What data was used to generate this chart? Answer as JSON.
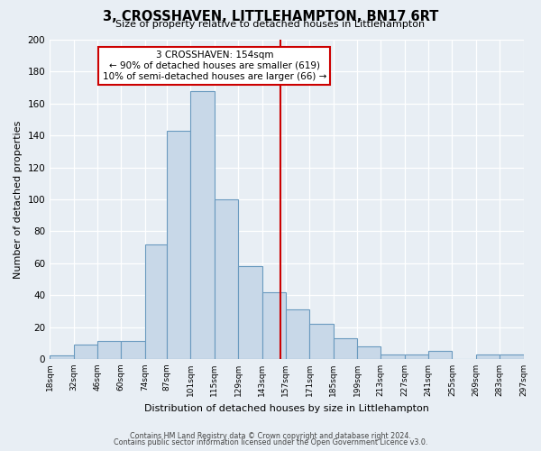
{
  "title": "3, CROSSHAVEN, LITTLEHAMPTON, BN17 6RT",
  "subtitle": "Size of property relative to detached houses in Littlehampton",
  "xlabel": "Distribution of detached houses by size in Littlehampton",
  "ylabel": "Number of detached properties",
  "bar_edges": [
    18,
    32,
    46,
    60,
    74,
    87,
    101,
    115,
    129,
    143,
    157,
    171,
    185,
    199,
    213,
    227,
    241,
    255,
    269,
    283,
    297
  ],
  "bar_heights": [
    2,
    9,
    11,
    11,
    72,
    143,
    168,
    100,
    58,
    42,
    31,
    22,
    13,
    8,
    3,
    3,
    5,
    0,
    3,
    3
  ],
  "bar_color": "#c8d8e8",
  "bar_edge_color": "#6a9abf",
  "tick_labels": [
    "18sqm",
    "32sqm",
    "46sqm",
    "60sqm",
    "74sqm",
    "87sqm",
    "101sqm",
    "115sqm",
    "129sqm",
    "143sqm",
    "157sqm",
    "171sqm",
    "185sqm",
    "199sqm",
    "213sqm",
    "227sqm",
    "241sqm",
    "255sqm",
    "269sqm",
    "283sqm",
    "297sqm"
  ],
  "vline_x": 154,
  "vline_color": "#cc0000",
  "ylim": [
    0,
    200
  ],
  "yticks": [
    0,
    20,
    40,
    60,
    80,
    100,
    120,
    140,
    160,
    180,
    200
  ],
  "annotation_title": "3 CROSSHAVEN: 154sqm",
  "annotation_line1": "← 90% of detached houses are smaller (619)",
  "annotation_line2": "10% of semi-detached houses are larger (66) →",
  "annotation_box_color": "#ffffff",
  "annotation_box_edge": "#cc0000",
  "bg_color": "#e8eef4",
  "footer1": "Contains HM Land Registry data © Crown copyright and database right 2024.",
  "footer2": "Contains public sector information licensed under the Open Government Licence v3.0."
}
